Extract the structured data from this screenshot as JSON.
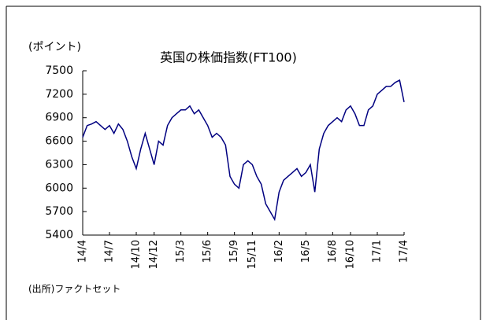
{
  "chart_data": {
    "type": "line",
    "title": "英国の株価指数(FT100)",
    "y_label": "(ポイント)",
    "source": "(出所)ファクトセット",
    "ylim": [
      5400,
      7500
    ],
    "yticks": [
      5400,
      5700,
      6000,
      6300,
      6600,
      6900,
      7200,
      7500
    ],
    "xlim": [
      0,
      36
    ],
    "xticks": [
      {
        "value": 0,
        "label": "14/4"
      },
      {
        "value": 3,
        "label": "14/7"
      },
      {
        "value": 6,
        "label": "14/10"
      },
      {
        "value": 8,
        "label": "14/12"
      },
      {
        "value": 11,
        "label": "15/3"
      },
      {
        "value": 14,
        "label": "15/6"
      },
      {
        "value": 17,
        "label": "15/9"
      },
      {
        "value": 19,
        "label": "15/11"
      },
      {
        "value": 22,
        "label": "16/2"
      },
      {
        "value": 25,
        "label": "16/5"
      },
      {
        "value": 28,
        "label": "16/8"
      },
      {
        "value": 30,
        "label": "16/10"
      },
      {
        "value": 33,
        "label": "17/1"
      },
      {
        "value": 36,
        "label": "17/4"
      }
    ],
    "series": [
      {
        "color": "#000080",
        "x": [
          0,
          0.5,
          1,
          1.5,
          2,
          2.5,
          3,
          3.5,
          4,
          4.5,
          5,
          5.5,
          6,
          6.5,
          7,
          7.5,
          8,
          8.5,
          9,
          9.5,
          10,
          10.5,
          11,
          11.5,
          12,
          12.5,
          13,
          13.5,
          14,
          14.5,
          15,
          15.5,
          16,
          16.5,
          17,
          17.5,
          18,
          18.5,
          19,
          19.5,
          20,
          20.5,
          21,
          21.5,
          22,
          22.5,
          23,
          23.5,
          24,
          24.5,
          25,
          25.5,
          26,
          26.5,
          27,
          27.5,
          28,
          28.5,
          29,
          29.5,
          30,
          30.5,
          31,
          31.5,
          32,
          32.5,
          33,
          33.5,
          34,
          34.5,
          35,
          35.5,
          36
        ],
        "values": [
          6650,
          6800,
          6820,
          6850,
          6800,
          6750,
          6800,
          6700,
          6820,
          6750,
          6600,
          6400,
          6250,
          6500,
          6700,
          6500,
          6300,
          6600,
          6550,
          6800,
          6900,
          6950,
          7000,
          7000,
          7050,
          6950,
          7000,
          6900,
          6800,
          6650,
          6700,
          6650,
          6550,
          6150,
          6050,
          6000,
          6300,
          6350,
          6300,
          6150,
          6050,
          5800,
          5700,
          5600,
          5950,
          6100,
          6150,
          6200,
          6250,
          6150,
          6200,
          6300,
          5950,
          6500,
          6700,
          6800,
          6850,
          6900,
          6850,
          7000,
          7050,
          6950,
          6800,
          6800,
          7000,
          7050,
          7200,
          7250,
          7300,
          7300,
          7350,
          7380,
          7100
        ]
      }
    ]
  }
}
